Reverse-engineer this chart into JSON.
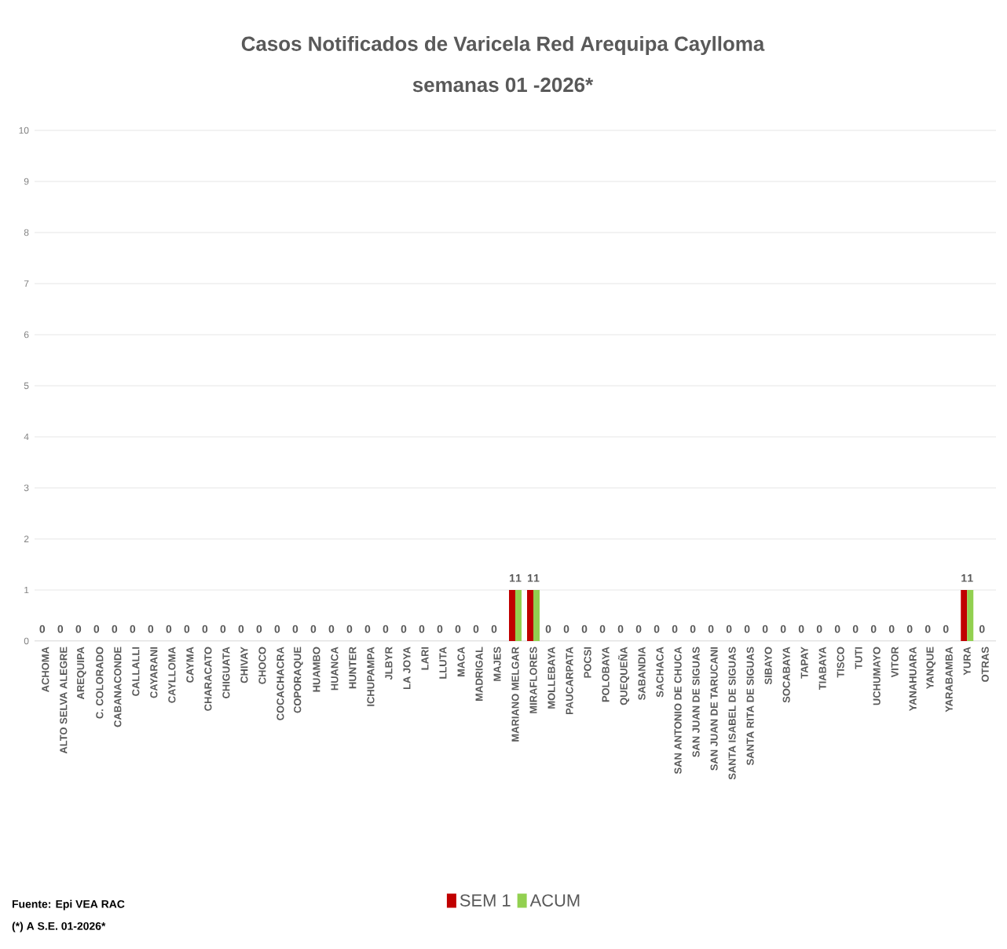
{
  "chart_data": {
    "type": "bar",
    "title": "Casos Notificados de Varicela Red Arequipa Caylloma",
    "subtitle": "semanas 01 -2026*",
    "categories": [
      "ACHOMA",
      "ALTO SELVA ALEGRE",
      "AREQUIPA",
      "C. COLORADO",
      "CABANACONDE",
      "CALLALLI",
      "CAYARANI",
      "CAYLLOMA",
      "CAYMA",
      "CHARACATO",
      "CHIGUATA",
      "CHIVAY",
      "CHOCO",
      "COCACHACRA",
      "COPORAQUE",
      "HUAMBO",
      "HUANCA",
      "HUNTER",
      "ICHUPAMPA",
      "JLBYR",
      "LA JOYA",
      "LARI",
      "LLUTA",
      "MACA",
      "MADRIGAL",
      "MAJES",
      "MARIANO MELGAR",
      "MIRAFLORES",
      "MOLLEBAYA",
      "PAUCARPATA",
      "POCSI",
      "POLOBAYA",
      "QUEQUEÑA",
      "SABANDIA",
      "SACHACA",
      "SAN ANTONIO DE CHUCA",
      "SAN JUAN DE SIGUAS",
      "SAN JUAN DE TARUCANI",
      "SANTA ISABEL DE SIGUAS",
      "SANTA RITA DE SIGUAS",
      "SIBAYO",
      "SOCABAYA",
      "TAPAY",
      "TIABAYA",
      "TISCO",
      "TUTI",
      "UCHUMAYO",
      "VITOR",
      "YANAHUARA",
      "YANQUE",
      "YARABAMBA",
      "YURA",
      "OTRAS"
    ],
    "series": [
      {
        "name": "SEM 1",
        "color": "#c00000",
        "values": [
          0,
          0,
          0,
          0,
          0,
          0,
          0,
          0,
          0,
          0,
          0,
          0,
          0,
          0,
          0,
          0,
          0,
          0,
          0,
          0,
          0,
          0,
          0,
          0,
          0,
          0,
          1,
          1,
          0,
          0,
          0,
          0,
          0,
          0,
          0,
          0,
          0,
          0,
          0,
          0,
          0,
          0,
          0,
          0,
          0,
          0,
          0,
          0,
          0,
          0,
          0,
          1,
          0
        ],
        "value_labels": [
          "0",
          "0",
          "0",
          "0",
          "0",
          "0",
          "0",
          "0",
          "0",
          "0",
          "0",
          "0",
          "0",
          "0",
          "0",
          "0",
          "0",
          "0",
          "0",
          "0",
          "0",
          "0",
          "0",
          "0",
          "0",
          "0",
          "1",
          "1",
          "0",
          "0",
          "0",
          "0",
          "0",
          "0",
          "0",
          "0",
          "0",
          "0",
          "0",
          "0",
          "0",
          "0",
          "0",
          "0",
          "0",
          "0",
          "0",
          "0",
          "0",
          "0",
          "0",
          "1",
          "0"
        ]
      },
      {
        "name": "ACUM",
        "color": "#92d050",
        "values": [
          0,
          0,
          0,
          0,
          0,
          0,
          0,
          0,
          0,
          0,
          0,
          0,
          0,
          0,
          0,
          0,
          0,
          0,
          0,
          0,
          0,
          0,
          0,
          0,
          0,
          0,
          1,
          1,
          0,
          0,
          0,
          0,
          0,
          0,
          0,
          0,
          0,
          0,
          0,
          0,
          0,
          0,
          0,
          0,
          0,
          0,
          0,
          0,
          0,
          0,
          0,
          1,
          0
        ],
        "value_labels": [
          null,
          null,
          null,
          null,
          null,
          null,
          null,
          null,
          null,
          null,
          null,
          null,
          null,
          null,
          null,
          null,
          null,
          null,
          null,
          null,
          null,
          null,
          null,
          null,
          null,
          null,
          "1",
          "1",
          null,
          null,
          null,
          null,
          null,
          null,
          null,
          null,
          null,
          null,
          null,
          null,
          null,
          null,
          null,
          null,
          null,
          null,
          null,
          null,
          null,
          null,
          null,
          "1",
          null
        ]
      }
    ],
    "ylim": [
      0,
      10
    ],
    "yticks": [
      0,
      1,
      2,
      3,
      4,
      5,
      6,
      7,
      8,
      9,
      10
    ],
    "grid": "y",
    "legend": "bottom",
    "annotations": [
      "Fuente: Epi VEA RAC",
      "(*)",
      "A S.E. 01-2026*"
    ]
  }
}
